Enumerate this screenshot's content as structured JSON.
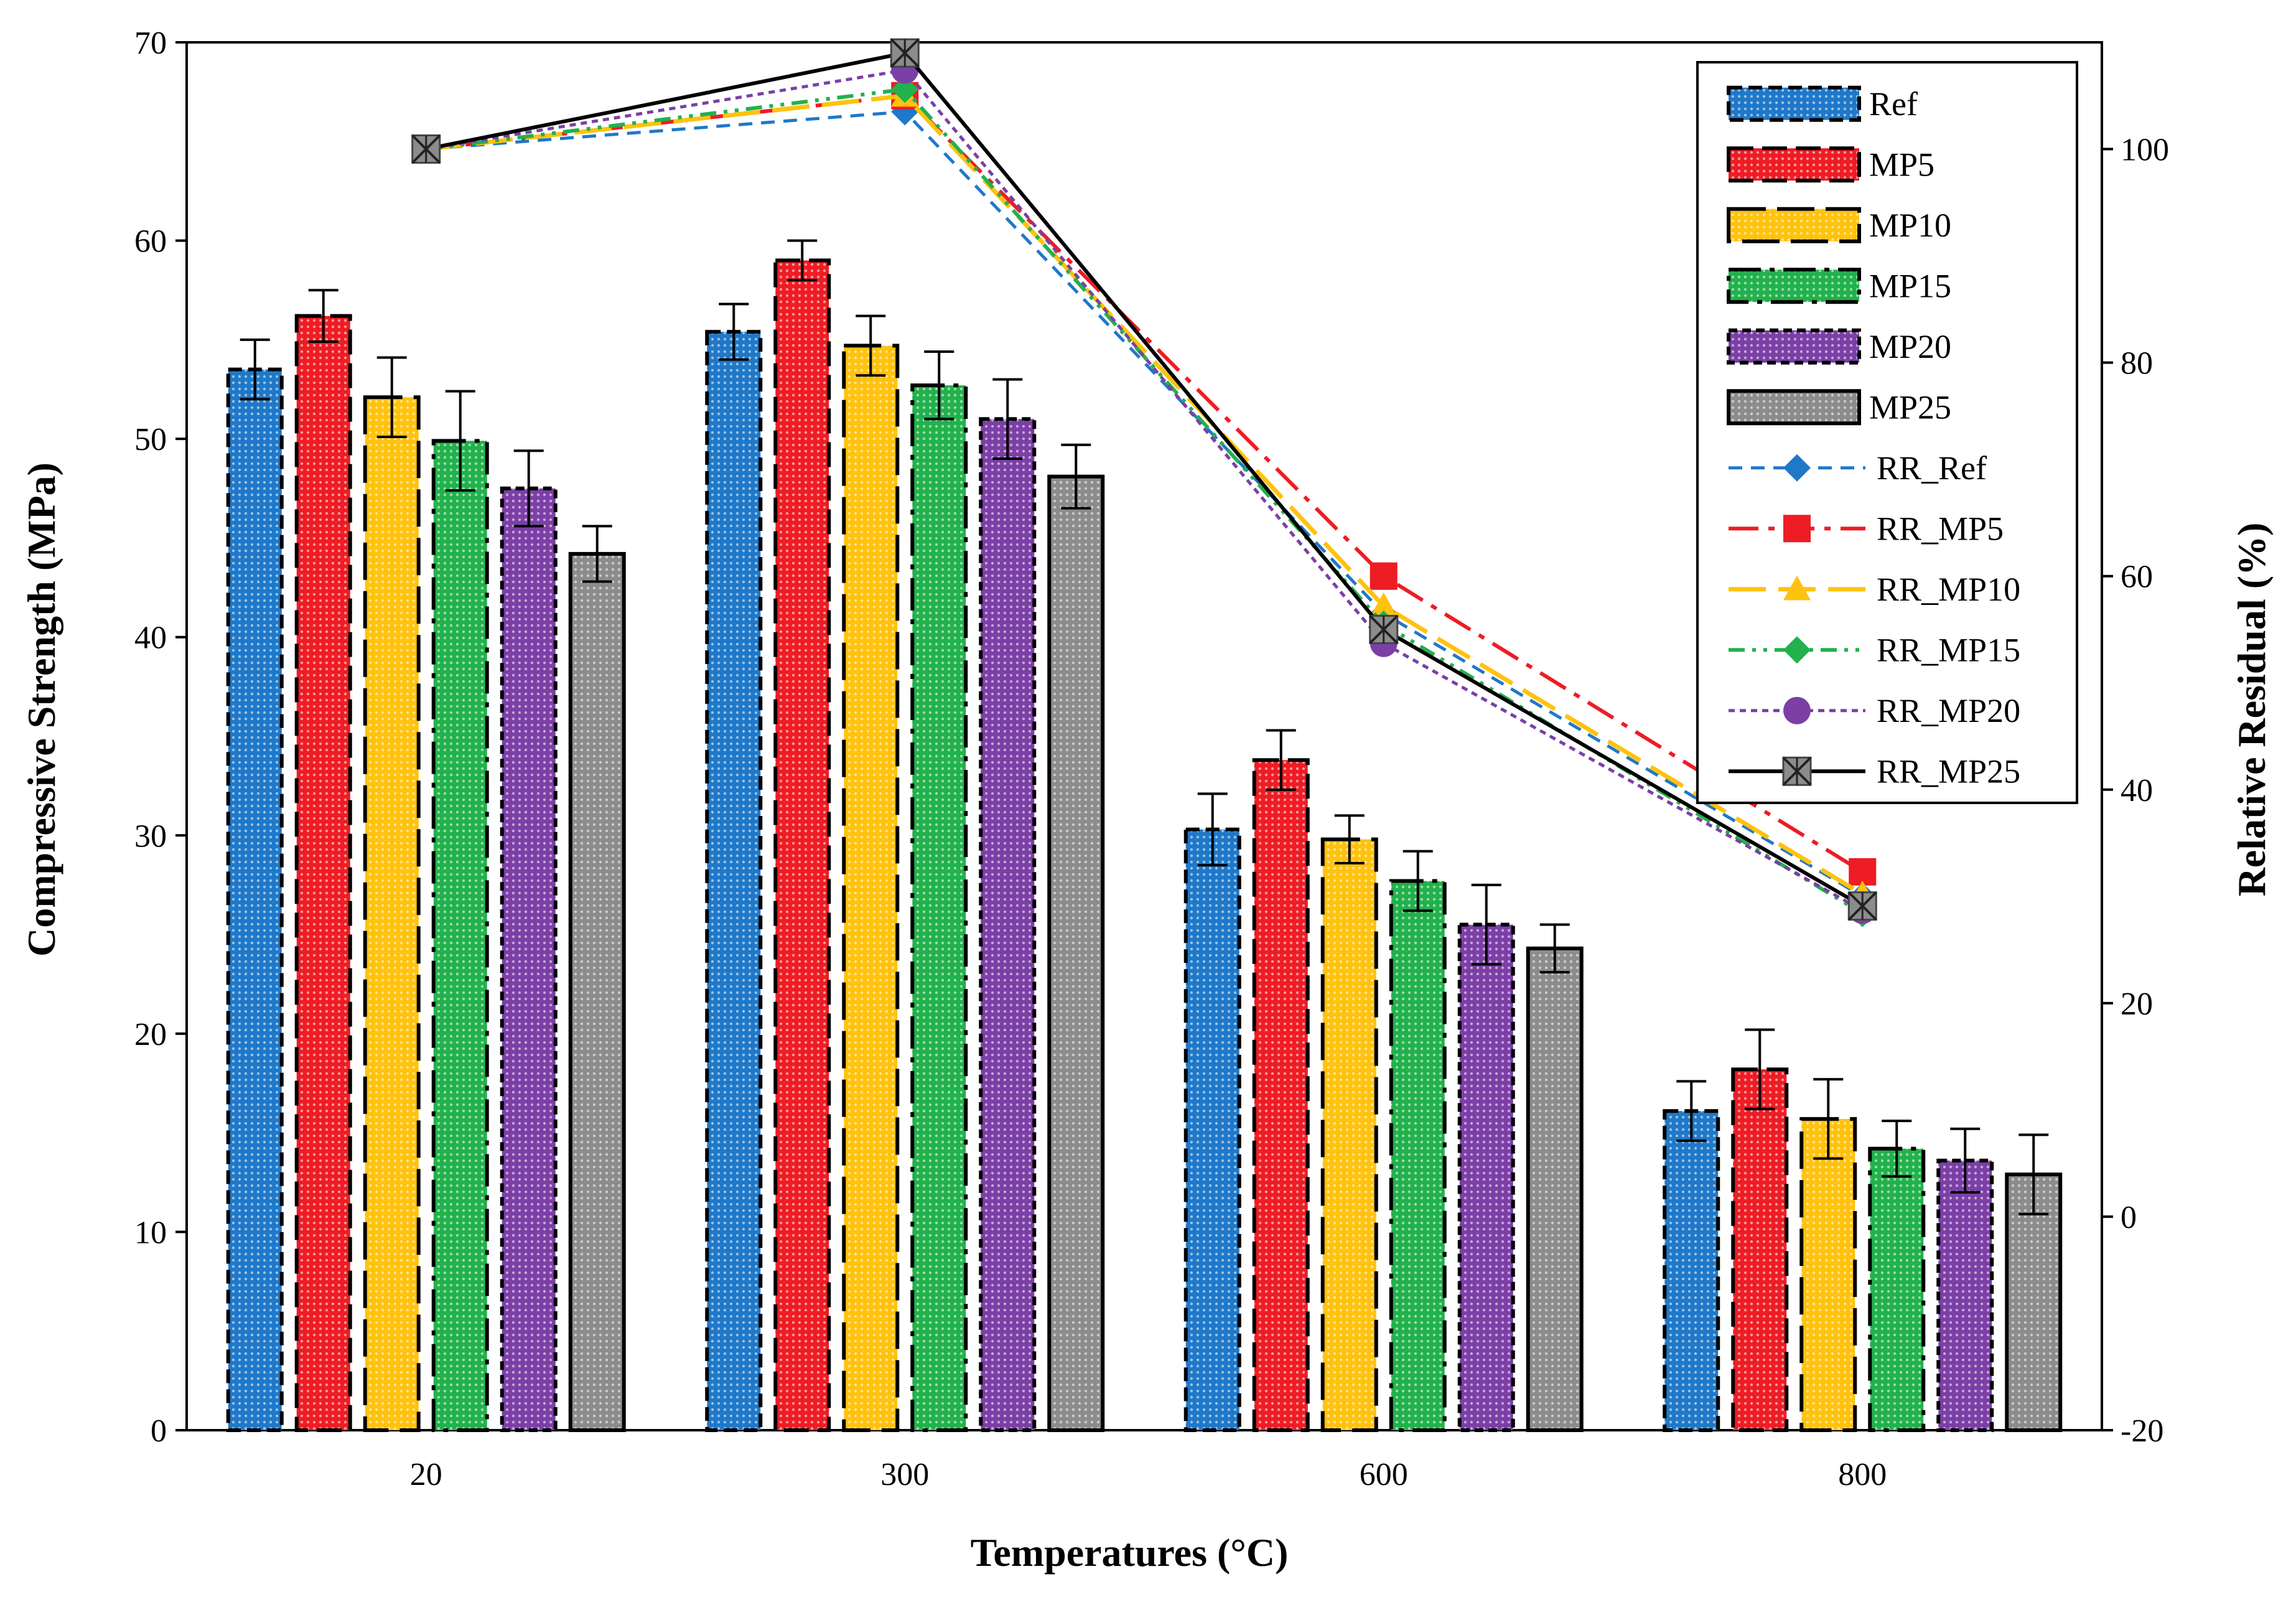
{
  "chart_data": {
    "type": "bar",
    "title": "",
    "xlabel": "Temperatures (°C)",
    "ylabel": "Compressive Strength (MPa)",
    "y2label": "Relative Residual (%)",
    "ylim": [
      0,
      70
    ],
    "y2lim": [
      -20,
      110
    ],
    "yticks": [
      "0",
      "10",
      "20",
      "30",
      "40",
      "50",
      "60",
      "70"
    ],
    "y2ticks": [
      "-20",
      "0",
      "20",
      "40",
      "60",
      "80",
      "100"
    ],
    "categories": [
      "20",
      "300",
      "600",
      "800"
    ],
    "bar_series": [
      {
        "name": "Ref",
        "color": "#1f78c8",
        "values": [
          53.5,
          55.4,
          30.3,
          16.1
        ],
        "errors": [
          1.5,
          1.4,
          1.8,
          1.5
        ]
      },
      {
        "name": "MP5",
        "color": "#ee1c24",
        "values": [
          56.2,
          59.0,
          33.8,
          18.2
        ],
        "errors": [
          1.3,
          1.0,
          1.5,
          2.0
        ]
      },
      {
        "name": "MP10",
        "color": "#ffc20e",
        "values": [
          52.1,
          54.7,
          29.8,
          15.7
        ],
        "errors": [
          2.0,
          1.5,
          1.2,
          2.0
        ]
      },
      {
        "name": "MP15",
        "color": "#22b14c",
        "values": [
          49.9,
          52.7,
          27.7,
          14.2
        ],
        "errors": [
          2.5,
          1.7,
          1.5,
          1.4
        ]
      },
      {
        "name": "MP20",
        "color": "#7b3fa6",
        "values": [
          47.5,
          51.0,
          25.5,
          13.6
        ],
        "errors": [
          1.9,
          2.0,
          2.0,
          1.6
        ]
      },
      {
        "name": "MP25",
        "color": "#8c8c8c",
        "values": [
          44.2,
          48.1,
          24.3,
          12.9
        ],
        "errors": [
          1.4,
          1.6,
          1.2,
          2.0
        ]
      }
    ],
    "line_series": [
      {
        "name": "RR_Ref",
        "color": "#1f78c8",
        "values": [
          100,
          103.5,
          56.5,
          30.0
        ]
      },
      {
        "name": "RR_MP5",
        "color": "#ee1c24",
        "values": [
          100,
          105.0,
          60.0,
          32.3
        ]
      },
      {
        "name": "RR_MP10",
        "color": "#ffc20e",
        "values": [
          100,
          105.0,
          57.2,
          30.2
        ]
      },
      {
        "name": "RR_MP15",
        "color": "#22b14c",
        "values": [
          100,
          105.6,
          55.5,
          28.4
        ]
      },
      {
        "name": "RR_MP20",
        "color": "#7b3fa6",
        "values": [
          100,
          107.4,
          53.7,
          28.7
        ]
      },
      {
        "name": "RR_MP25",
        "color": "#000000",
        "values": [
          100,
          109.0,
          55.0,
          29.1
        ]
      }
    ],
    "legend_position": "top-right"
  }
}
